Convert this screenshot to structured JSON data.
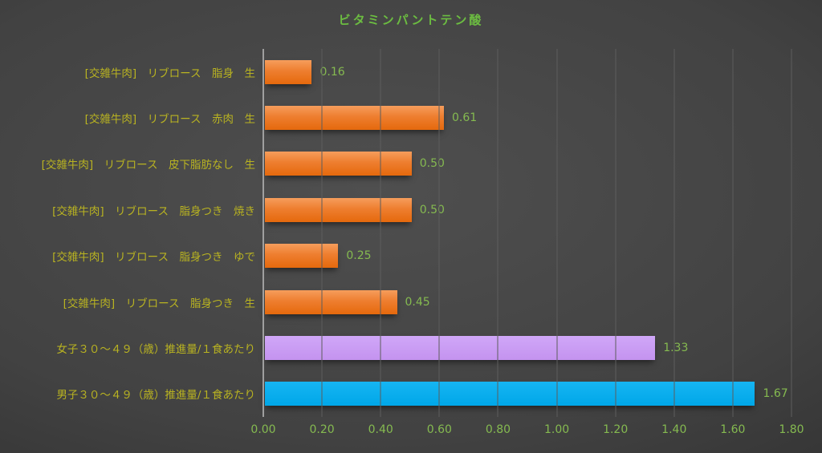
{
  "chart_data": {
    "type": "bar",
    "orientation": "horizontal",
    "title": "ビタミンパントテン酸",
    "categories": [
      "[交雑牛肉]　リブロース　脂身　生",
      "[交雑牛肉]　リブロース　赤肉　生",
      "[交雑牛肉]　リブロース　皮下脂肪なし　生",
      "[交雑牛肉]　リブロース　脂身つき　焼き",
      "[交雑牛肉]　リブロース　脂身つき　ゆで",
      "[交雑牛肉]　リブロース　脂身つき　生",
      "女子３０～４９（歳）推進量/１食あたり",
      "男子３０～４９（歳）推進量/１食あたり"
    ],
    "values": [
      0.16,
      0.61,
      0.5,
      0.5,
      0.25,
      0.45,
      1.33,
      1.67
    ],
    "value_labels": [
      "0.16",
      "0.61",
      "0.50",
      "0.50",
      "0.25",
      "0.45",
      "1.33",
      "1.67"
    ],
    "bar_color_keys": [
      "orange",
      "orange",
      "orange",
      "orange",
      "orange",
      "orange",
      "purple",
      "blue"
    ],
    "xlim": [
      0,
      1.8
    ],
    "xticks": [
      0.0,
      0.2,
      0.4,
      0.6,
      0.8,
      1.0,
      1.2,
      1.4,
      1.6,
      1.8
    ],
    "xtick_labels": [
      "0.00",
      "0.20",
      "0.40",
      "0.60",
      "0.80",
      "1.00",
      "1.20",
      "1.40",
      "1.60",
      "1.80"
    ],
    "grid": true,
    "legend": "none"
  },
  "colors": {
    "title_green": "#6cbd41",
    "value_green": "#85ba50",
    "tick_green": "#85ba50",
    "category_yellow": "#b9b321",
    "gridline": "#5d5d5d",
    "axis_line": "#9f9f9f",
    "orange_top": "#f69d5c",
    "orange_mid": "#ee7e2f",
    "orange_bottom": "#e5690d",
    "purple_top": "#d0a7f8",
    "purple_bottom": "#c493ef",
    "blue_top": "#16b5f3",
    "blue_bottom": "#00a7e8"
  }
}
